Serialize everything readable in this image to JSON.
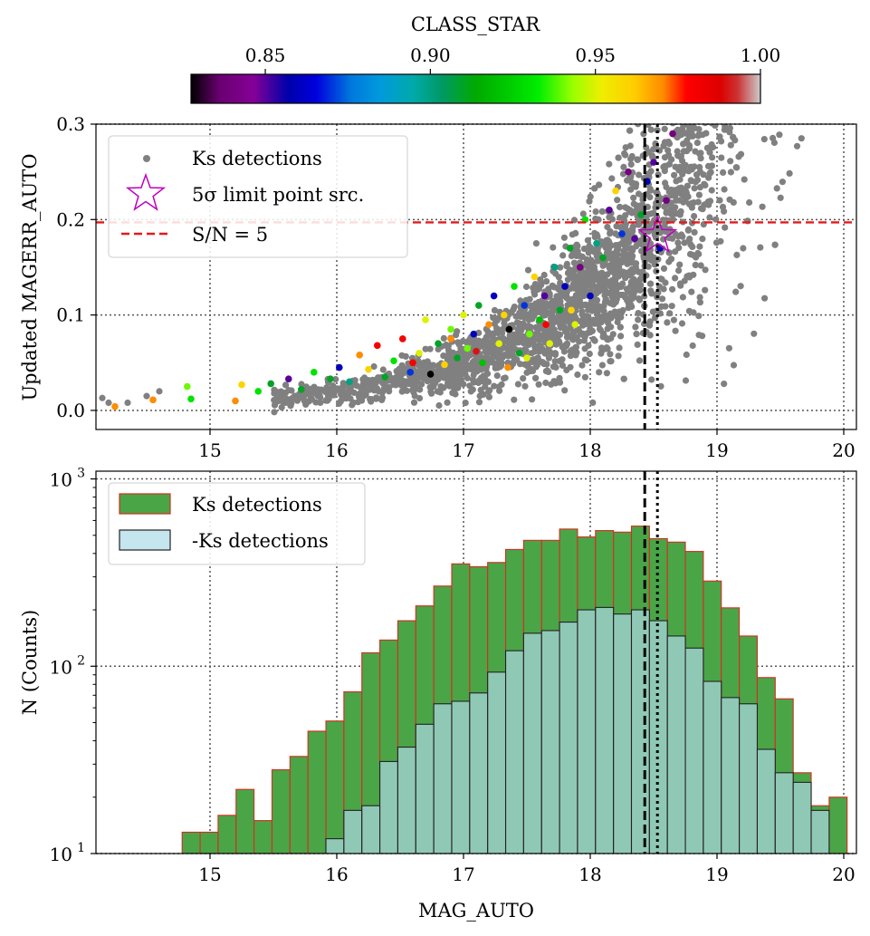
{
  "chart_data": [
    {
      "type": "colorbar",
      "label": "CLASS_STAR",
      "range": [
        0.8275,
        1.0
      ],
      "ticks": [
        0.85,
        0.9,
        0.95,
        1.0
      ],
      "tick_labels": [
        "0.85",
        "0.90",
        "0.95",
        "1.00"
      ],
      "colormap": "nipy_spectral"
    },
    {
      "type": "scatter",
      "ylabel": "Updated MAGERR_AUTO",
      "xlabel": "",
      "xlim": [
        14.1,
        20.1
      ],
      "ylim": [
        -0.02,
        0.3
      ],
      "x_ticks": [
        15,
        16,
        17,
        18,
        19,
        20
      ],
      "x_tick_labels": [
        "15",
        "16",
        "17",
        "18",
        "19",
        "20"
      ],
      "y_ticks": [
        0.0,
        0.1,
        0.2,
        0.3
      ],
      "y_tick_labels": [
        "0.0",
        "0.1",
        "0.2",
        "0.3"
      ],
      "grid": true,
      "legend_position": "top-left",
      "series": [
        {
          "name": "Ks detections",
          "marker": "gray-dot",
          "n_points": 2500,
          "model": "magerr ≈ 0.197·10^(0.4·(mag−18.5))"
        },
        {
          "name": "5σ limit point src.",
          "marker": "open-star",
          "x": [
            18.53
          ],
          "y": [
            0.183
          ]
        }
      ],
      "hlines": [
        {
          "name": "S/N = 5",
          "y": 0.197,
          "style": "dashed",
          "color": "#e41a1c"
        }
      ],
      "vlines": [
        {
          "x": 18.43,
          "style": "dashed"
        },
        {
          "x": 18.53,
          "style": "dotted"
        }
      ],
      "colored_points": [
        [
          14.02,
          0.022,
          0.88
        ],
        [
          14.25,
          0.004,
          0.97
        ],
        [
          14.55,
          0.011,
          0.97
        ],
        [
          14.82,
          0.025,
          0.94
        ],
        [
          14.85,
          0.012,
          0.93
        ],
        [
          15.2,
          0.01,
          0.97
        ],
        [
          15.25,
          0.027,
          0.96
        ],
        [
          15.38,
          0.02,
          0.93
        ],
        [
          15.48,
          0.028,
          0.91
        ],
        [
          15.62,
          0.033,
          0.85
        ],
        [
          15.72,
          0.022,
          0.91
        ],
        [
          15.82,
          0.04,
          0.93
        ],
        [
          15.95,
          0.033,
          0.91
        ],
        [
          16.02,
          0.045,
          0.86
        ],
        [
          16.1,
          0.03,
          0.9
        ],
        [
          16.18,
          0.058,
          0.97
        ],
        [
          16.25,
          0.043,
          0.96
        ],
        [
          16.32,
          0.068,
          0.98
        ],
        [
          16.38,
          0.035,
          0.91
        ],
        [
          16.45,
          0.052,
          0.93
        ],
        [
          16.52,
          0.075,
          0.98
        ],
        [
          16.58,
          0.04,
          0.87
        ],
        [
          16.65,
          0.06,
          0.95
        ],
        [
          16.7,
          0.095,
          0.95
        ],
        [
          16.74,
          0.038,
          0.82
        ],
        [
          16.8,
          0.07,
          0.91
        ],
        [
          16.85,
          0.048,
          0.96
        ],
        [
          16.9,
          0.085,
          0.94
        ],
        [
          16.95,
          0.055,
          0.91
        ],
        [
          17.0,
          0.1,
          0.95
        ],
        [
          17.03,
          0.065,
          0.94
        ],
        [
          17.08,
          0.08,
          0.86
        ],
        [
          17.12,
          0.11,
          0.91
        ],
        [
          17.15,
          0.05,
          0.92
        ],
        [
          17.2,
          0.09,
          0.97
        ],
        [
          17.24,
          0.12,
          0.86
        ],
        [
          17.28,
          0.07,
          0.95
        ],
        [
          17.32,
          0.1,
          0.96
        ],
        [
          17.36,
          0.085,
          0.82
        ],
        [
          17.4,
          0.13,
          0.93
        ],
        [
          17.44,
          0.06,
          0.91
        ],
        [
          17.48,
          0.11,
          0.87
        ],
        [
          17.52,
          0.08,
          0.94
        ],
        [
          17.56,
          0.14,
          0.96
        ],
        [
          17.6,
          0.095,
          0.92
        ],
        [
          17.64,
          0.12,
          0.85
        ],
        [
          17.68,
          0.07,
          0.95
        ],
        [
          17.72,
          0.15,
          0.9
        ],
        [
          17.76,
          0.105,
          0.91
        ],
        [
          17.8,
          0.13,
          0.86
        ],
        [
          17.84,
          0.17,
          0.91
        ],
        [
          17.88,
          0.09,
          0.95
        ],
        [
          17.92,
          0.15,
          0.84
        ],
        [
          17.96,
          0.2,
          0.93
        ],
        [
          18.0,
          0.12,
          0.86
        ],
        [
          18.05,
          0.175,
          0.9
        ],
        [
          18.1,
          0.16,
          0.91
        ],
        [
          18.15,
          0.21,
          0.85
        ],
        [
          18.2,
          0.23,
          0.96
        ],
        [
          18.25,
          0.185,
          0.87
        ],
        [
          18.3,
          0.25,
          0.84
        ],
        [
          18.35,
          0.18,
          0.85
        ],
        [
          18.4,
          0.205,
          0.91
        ],
        [
          18.45,
          0.24,
          0.86
        ],
        [
          18.5,
          0.26,
          0.85
        ],
        [
          18.55,
          0.17,
          0.86
        ],
        [
          18.6,
          0.22,
          0.84
        ],
        [
          18.65,
          0.29,
          0.84
        ],
        [
          17.35,
          0.045,
          0.97
        ],
        [
          17.5,
          0.055,
          0.95
        ],
        [
          16.9,
          0.075,
          0.97
        ],
        [
          16.6,
          0.05,
          0.98
        ],
        [
          17.1,
          0.062,
          0.99
        ],
        [
          17.65,
          0.09,
          0.98
        ],
        [
          17.85,
          0.105,
          0.96
        ]
      ]
    },
    {
      "type": "histogram",
      "xlabel": "MAG_AUTO",
      "ylabel": "N (Counts)",
      "yscale": "log",
      "xlim": [
        14.1,
        20.1
      ],
      "ylim": [
        10,
        1100
      ],
      "x_ticks": [
        15,
        16,
        17,
        18,
        19,
        20
      ],
      "x_tick_labels": [
        "15",
        "16",
        "17",
        "18",
        "19",
        "20"
      ],
      "y_ticks": [
        10,
        100,
        1000
      ],
      "y_tick_labels": [
        "10",
        "10",
        "10"
      ],
      "y_tick_exponents": [
        "1",
        "2",
        "3"
      ],
      "grid": true,
      "legend_position": "top-left",
      "bin_start": 14.78,
      "bin_width": 0.1418,
      "series": [
        {
          "name": "Ks detections",
          "color": "#4aa547",
          "edge": "#d62d20",
          "values": [
            13,
            13,
            16,
            22,
            15,
            28,
            33,
            45,
            51,
            73,
            118,
            138,
            175,
            210,
            268,
            352,
            340,
            358,
            420,
            470,
            470,
            540,
            490,
            530,
            520,
            560,
            480,
            460,
            410,
            285,
            205,
            145,
            87,
            67,
            27,
            18,
            20
          ]
        },
        {
          "name": "-Ks detections",
          "color": "#add8e6",
          "edge": "#222222",
          "values": [
            0,
            0,
            0,
            0,
            0,
            0,
            0,
            0,
            12,
            17,
            18,
            31,
            37,
            49,
            63,
            65,
            72,
            93,
            121,
            150,
            155,
            172,
            200,
            206,
            190,
            200,
            175,
            145,
            125,
            83,
            68,
            63,
            36,
            27,
            24,
            17,
            0
          ]
        }
      ],
      "vlines": [
        {
          "x": 18.43,
          "style": "dashed"
        },
        {
          "x": 18.53,
          "style": "dotted"
        }
      ]
    }
  ]
}
